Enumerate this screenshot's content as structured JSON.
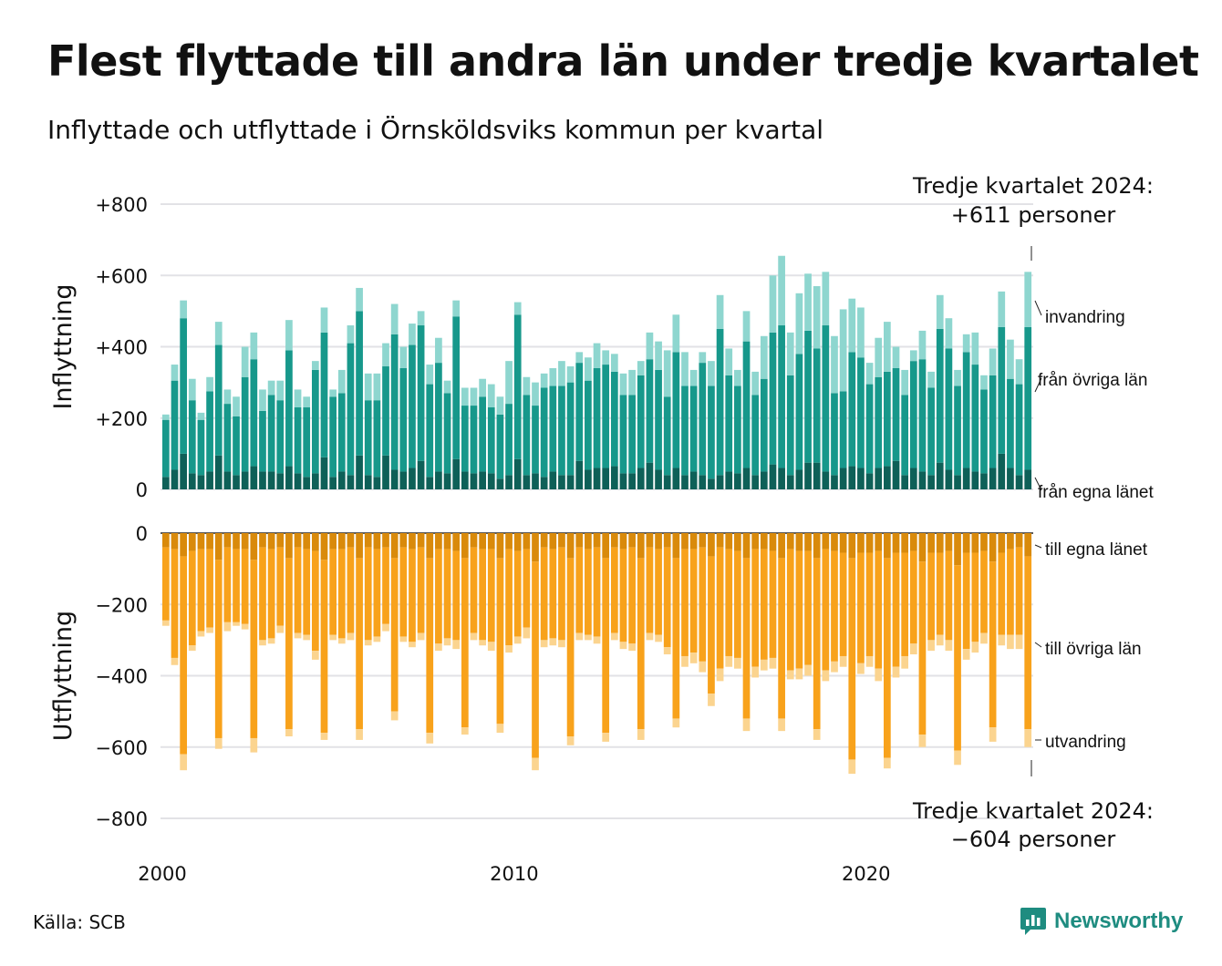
{
  "title": "Flest flyttade till andra län under tredje kvartalet",
  "subtitle": "Inflyttade och utflyttade i Örnsköldsviks kommun per kvartal",
  "source": "Källa: SCB",
  "brand": {
    "name": "Newsworthy",
    "icon": "newsworthy-logo-icon"
  },
  "colors": {
    "in_egna": "#0e6058",
    "in_ovriga": "#17988b",
    "in_invandring": "#8ed6cf",
    "out_egna": "#d98a0b",
    "out_ovriga": "#f8a21b",
    "out_utvandring": "#fbd48f"
  },
  "chart_data": [
    {
      "type": "bar",
      "stacked": true,
      "ylabel": "Inflyttning",
      "ylim": [
        0,
        800
      ],
      "yticks": [
        0,
        200,
        400,
        600,
        800
      ],
      "ytick_labels": [
        "0",
        "+200",
        "+400",
        "+600",
        "+800"
      ],
      "xticks": [
        "2000",
        "2010",
        "2020"
      ],
      "grid": true,
      "legend_entries": [
        "invandring",
        "från övriga län",
        "från egna länet"
      ],
      "annotation": [
        "Tredje kvartalet 2024:",
        "+611 personer"
      ],
      "quarters_start": "2000 Q1",
      "quarters_end": "2024 Q3",
      "series": [
        {
          "name": "från egna länet",
          "values": [
            35,
            55,
            100,
            45,
            40,
            50,
            95,
            50,
            40,
            50,
            65,
            50,
            50,
            45,
            65,
            45,
            35,
            45,
            90,
            35,
            50,
            40,
            95,
            40,
            35,
            95,
            55,
            50,
            60,
            80,
            35,
            50,
            45,
            85,
            50,
            45,
            50,
            45,
            30,
            40,
            85,
            40,
            45,
            35,
            50,
            40,
            40,
            80,
            55,
            60,
            60,
            65,
            45,
            45,
            60,
            75,
            55,
            40,
            60,
            40,
            50,
            40,
            30,
            40,
            50,
            45,
            60,
            40,
            50,
            70,
            60,
            40,
            55,
            75,
            75,
            50,
            40,
            60,
            65,
            60,
            45,
            60,
            65,
            80,
            40,
            60,
            50,
            40,
            75,
            55,
            40,
            60,
            50,
            45,
            60,
            100,
            60,
            40,
            55
          ]
        },
        {
          "name": "från övriga län",
          "values": [
            160,
            250,
            380,
            205,
            155,
            225,
            310,
            190,
            165,
            265,
            300,
            170,
            215,
            205,
            325,
            185,
            195,
            290,
            350,
            225,
            220,
            370,
            405,
            210,
            215,
            250,
            380,
            290,
            345,
            380,
            260,
            305,
            225,
            400,
            185,
            190,
            210,
            185,
            180,
            200,
            405,
            225,
            190,
            250,
            240,
            250,
            260,
            275,
            250,
            280,
            290,
            265,
            220,
            220,
            260,
            290,
            280,
            220,
            325,
            250,
            240,
            315,
            260,
            410,
            270,
            245,
            355,
            225,
            260,
            370,
            400,
            280,
            325,
            370,
            320,
            410,
            230,
            215,
            320,
            310,
            250,
            255,
            265,
            260,
            225,
            300,
            315,
            245,
            375,
            340,
            250,
            325,
            300,
            235,
            260,
            355,
            250,
            255,
            400
          ]
        },
        {
          "name": "invandring",
          "values": [
            15,
            45,
            50,
            60,
            20,
            40,
            65,
            40,
            55,
            85,
            75,
            60,
            40,
            55,
            85,
            50,
            30,
            25,
            70,
            20,
            65,
            50,
            65,
            75,
            75,
            65,
            85,
            60,
            60,
            40,
            55,
            70,
            35,
            45,
            50,
            50,
            50,
            65,
            50,
            120,
            35,
            50,
            65,
            40,
            50,
            70,
            45,
            30,
            65,
            70,
            40,
            50,
            60,
            70,
            40,
            75,
            80,
            130,
            105,
            95,
            45,
            30,
            70,
            95,
            75,
            45,
            85,
            65,
            120,
            160,
            195,
            120,
            170,
            160,
            175,
            150,
            160,
            230,
            150,
            140,
            60,
            110,
            140,
            60,
            70,
            30,
            80,
            45,
            95,
            85,
            45,
            50,
            90,
            40,
            75,
            100,
            110,
            70,
            155
          ]
        }
      ]
    },
    {
      "type": "bar",
      "stacked": true,
      "ylabel": "Utflyttning",
      "ylim": [
        -800,
        0
      ],
      "yticks": [
        0,
        -200,
        -400,
        -600,
        -800
      ],
      "ytick_labels": [
        "0",
        "−200",
        "−400",
        "−600",
        "−800"
      ],
      "xticks": [
        "2000",
        "2010",
        "2020"
      ],
      "grid": true,
      "legend_entries": [
        "till egna länet",
        "till övriga län",
        "utvandring"
      ],
      "annotation": [
        "Tredje kvartalet 2024:",
        "−604 personer"
      ],
      "quarters_start": "2000 Q1",
      "quarters_end": "2024 Q3",
      "series": [
        {
          "name": "till egna länet",
          "values": [
            -40,
            -45,
            -65,
            -50,
            -45,
            -45,
            -75,
            -40,
            -45,
            -45,
            -75,
            -40,
            -45,
            -40,
            -70,
            -40,
            -45,
            -50,
            -75,
            -45,
            -45,
            -40,
            -70,
            -40,
            -45,
            -40,
            -70,
            -40,
            -45,
            -40,
            -70,
            -45,
            -45,
            -50,
            -70,
            -40,
            -45,
            -45,
            -70,
            -45,
            -50,
            -45,
            -80,
            -40,
            -45,
            -40,
            -70,
            -40,
            -45,
            -40,
            -70,
            -40,
            -45,
            -40,
            -70,
            -40,
            -45,
            -40,
            -70,
            -45,
            -45,
            -40,
            -65,
            -40,
            -45,
            -50,
            -70,
            -45,
            -45,
            -50,
            -70,
            -45,
            -50,
            -50,
            -70,
            -45,
            -50,
            -55,
            -70,
            -55,
            -55,
            -50,
            -70,
            -55,
            -55,
            -50,
            -80,
            -55,
            -55,
            -50,
            -90,
            -55,
            -55,
            -50,
            -80,
            -55,
            -45,
            -40,
            -65
          ]
        },
        {
          "name": "till övriga län",
          "values": [
            -205,
            -305,
            -555,
            -265,
            -230,
            -220,
            -500,
            -210,
            -205,
            -210,
            -500,
            -260,
            -250,
            -220,
            -480,
            -240,
            -240,
            -280,
            -485,
            -240,
            -250,
            -240,
            -480,
            -260,
            -245,
            -215,
            -430,
            -250,
            -260,
            -240,
            -490,
            -265,
            -250,
            -250,
            -475,
            -240,
            -255,
            -260,
            -465,
            -270,
            -240,
            -220,
            -550,
            -260,
            -250,
            -260,
            -500,
            -240,
            -240,
            -250,
            -490,
            -240,
            -260,
            -270,
            -480,
            -240,
            -240,
            -280,
            -450,
            -300,
            -290,
            -320,
            -385,
            -340,
            -300,
            -300,
            -450,
            -330,
            -310,
            -300,
            -450,
            -340,
            -330,
            -320,
            -480,
            -340,
            -310,
            -290,
            -565,
            -310,
            -290,
            -330,
            -560,
            -320,
            -290,
            -260,
            -485,
            -245,
            -230,
            -250,
            -520,
            -270,
            -250,
            -230,
            -465,
            -230,
            -240,
            -245,
            -485
          ]
        },
        {
          "name": "utvandring",
          "values": [
            -15,
            -20,
            -45,
            -15,
            -15,
            -15,
            -30,
            -25,
            -10,
            -15,
            -40,
            -15,
            -15,
            -20,
            -20,
            -15,
            -15,
            -25,
            -20,
            -15,
            -15,
            -20,
            -30,
            -15,
            -15,
            -20,
            -25,
            -15,
            -15,
            -20,
            -30,
            -20,
            -20,
            -25,
            -20,
            -20,
            -15,
            -25,
            -25,
            -20,
            -20,
            -30,
            -35,
            -20,
            -20,
            -20,
            -25,
            -20,
            -15,
            -20,
            -25,
            -20,
            -20,
            -20,
            -30,
            -20,
            -20,
            -20,
            -25,
            -30,
            -30,
            -30,
            -35,
            -35,
            -30,
            -30,
            -35,
            -30,
            -30,
            -30,
            -35,
            -25,
            -30,
            -30,
            -30,
            -30,
            -30,
            -30,
            -40,
            -30,
            -30,
            -35,
            -30,
            -30,
            -35,
            -30,
            -35,
            -30,
            -30,
            -30,
            -40,
            -30,
            -30,
            -30,
            -40,
            -30,
            -40,
            -40,
            -50
          ]
        }
      ]
    }
  ]
}
